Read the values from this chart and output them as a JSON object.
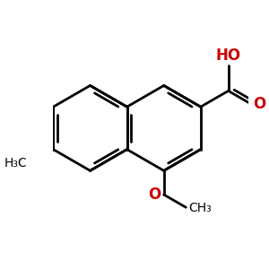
{
  "background_color": "#ffffff",
  "bond_color": "#000000",
  "red_color": "#cc0000",
  "bond_width": 2.0,
  "figsize": [
    3.0,
    3.0
  ],
  "dpi": 100,
  "scale": 1.0,
  "xlim": [
    -2.0,
    2.6
  ],
  "ylim": [
    -2.0,
    2.0
  ]
}
